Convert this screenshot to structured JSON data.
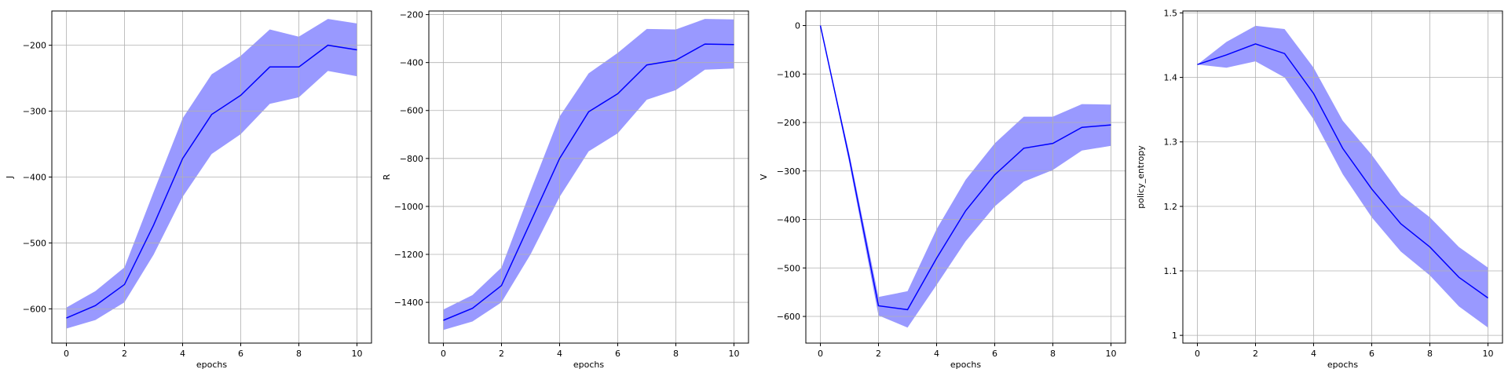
{
  "colors": {
    "line": "#0000ff",
    "band": "#9999ff",
    "grid": "#b0b0b0",
    "axis": "#000000"
  },
  "chart_data": [
    {
      "type": "line",
      "xlabel": "epochs",
      "ylabel": "J",
      "xlim": [
        -0.5,
        10.5
      ],
      "ylim": [
        -652,
        -148
      ],
      "xticks": [
        0,
        2,
        4,
        6,
        8,
        10
      ],
      "yticks": [
        -600,
        -500,
        -400,
        -300,
        -200
      ],
      "grid": true,
      "x": [
        0,
        1,
        2,
        3,
        4,
        5,
        6,
        7,
        8,
        9,
        10
      ],
      "mean": [
        -614,
        -595,
        -563,
        -473,
        -372,
        -305,
        -276,
        -233,
        -233,
        -200,
        -207
      ],
      "upper": [
        -598,
        -573,
        -537,
        -423,
        -311,
        -244,
        -216,
        -176,
        -187,
        -160,
        -167
      ],
      "lower": [
        -630,
        -617,
        -590,
        -518,
        -430,
        -365,
        -335,
        -289,
        -279,
        -239,
        -247
      ]
    },
    {
      "type": "line",
      "xlabel": "epochs",
      "ylabel": "R",
      "xlim": [
        -0.5,
        10.5
      ],
      "ylim": [
        -1570,
        -185
      ],
      "xticks": [
        0,
        2,
        4,
        6,
        8,
        10
      ],
      "yticks": [
        -1400,
        -1200,
        -1000,
        -800,
        -600,
        -400,
        -200
      ],
      "grid": true,
      "x": [
        0,
        1,
        2,
        3,
        4,
        5,
        6,
        7,
        8,
        9,
        10
      ],
      "mean": [
        -1475,
        -1425,
        -1330,
        -1065,
        -800,
        -605,
        -530,
        -410,
        -390,
        -323,
        -325
      ],
      "upper": [
        -1430,
        -1370,
        -1255,
        -935,
        -625,
        -445,
        -360,
        -260,
        -262,
        -218,
        -220
      ],
      "lower": [
        -1515,
        -1480,
        -1400,
        -1200,
        -960,
        -770,
        -695,
        -555,
        -515,
        -430,
        -425
      ]
    },
    {
      "type": "line",
      "xlabel": "epochs",
      "ylabel": "V",
      "xlim": [
        -0.5,
        10.5
      ],
      "ylim": [
        -655,
        30
      ],
      "xticks": [
        0,
        2,
        4,
        6,
        8,
        10
      ],
      "yticks": [
        -600,
        -500,
        -400,
        -300,
        -200,
        -100,
        0
      ],
      "grid": true,
      "x": [
        0,
        1,
        2,
        3,
        4,
        5,
        6,
        7,
        8,
        9,
        10
      ],
      "mean": [
        0,
        -275,
        -578,
        -586,
        -480,
        -382,
        -308,
        -253,
        -243,
        -210,
        -205
      ],
      "upper": [
        0,
        -265,
        -560,
        -548,
        -420,
        -318,
        -243,
        -188,
        -188,
        -162,
        -163
      ],
      "lower": [
        0,
        -285,
        -598,
        -623,
        -535,
        -445,
        -373,
        -322,
        -298,
        -258,
        -248
      ]
    },
    {
      "type": "line",
      "xlabel": "epochs",
      "ylabel": "policy_entropy",
      "xlim": [
        -0.5,
        10.5
      ],
      "ylim": [
        0.988,
        1.503
      ],
      "xticks": [
        0,
        2,
        4,
        6,
        8,
        10
      ],
      "yticks": [
        1.0,
        1.1,
        1.2,
        1.3,
        1.4,
        1.5
      ],
      "grid": true,
      "x": [
        0,
        1,
        2,
        3,
        4,
        5,
        6,
        7,
        8,
        9,
        10
      ],
      "mean": [
        1.42,
        1.435,
        1.452,
        1.437,
        1.375,
        1.29,
        1.227,
        1.173,
        1.137,
        1.09,
        1.058
      ],
      "upper": [
        1.42,
        1.455,
        1.48,
        1.475,
        1.415,
        1.333,
        1.28,
        1.218,
        1.183,
        1.137,
        1.105
      ],
      "lower": [
        1.42,
        1.415,
        1.425,
        1.4,
        1.335,
        1.25,
        1.183,
        1.13,
        1.093,
        1.045,
        1.012
      ]
    }
  ]
}
